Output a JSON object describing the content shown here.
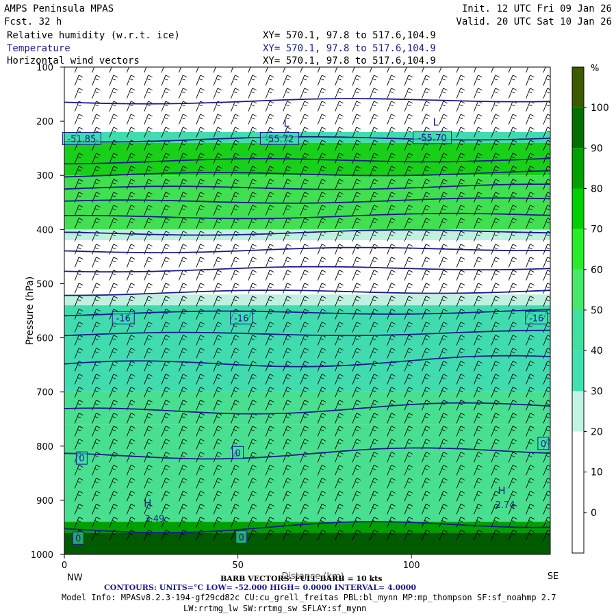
{
  "header": {
    "title": "AMPS Peninsula MPAS",
    "fcst": "Fcst.   32 h",
    "init": "Init. 12 UTC Fri 09 Jan 26",
    "valid": "Valid. 20 UTC Sat 10 Jan 26",
    "field1": "Relative humidity (w.r.t. ice)",
    "field2": "Temperature",
    "field3": "Horizontal wind vectors",
    "xy1": "XY= 570.1, 97.8 to 517.6,104.9",
    "xy2": "XY= 570.1, 97.8 to 517.6,104.9",
    "xy3": "XY= 570.1, 97.8 to 517.6,104.9"
  },
  "footer": {
    "barb": "BARB VECTORS:  FULL BARB = 10 kts",
    "contours": "CONTOURS:  UNITS=°C  LOW= -52.000         HIGH=  0.0000        INTERVAL=    4.0000",
    "model_info": "Model Info: MPASv8.2.3-194-gf29cd82c CU:cu_grell_freitas PBL:bl_mynn MP:mp_thompson SF:sf_noahmp 2.7",
    "model_info2": "LW:rrtmg_lw SW:rrtmg_sw SFLAY:sf_mynn"
  },
  "chart_data": {
    "type": "heatmap",
    "title": "Relative humidity (w.r.t. ice)",
    "ylabel": "Pressure (hPa)",
    "xlabel": "Distance (km)",
    "x_range": [
      0,
      140
    ],
    "y_range": [
      1000,
      100
    ],
    "x_ticks": [
      0,
      50,
      100
    ],
    "y_ticks": [
      100,
      200,
      300,
      400,
      500,
      600,
      700,
      800,
      900,
      1000
    ],
    "x_end_labels": {
      "left": "NW",
      "right": "SE"
    },
    "colorbar": {
      "unit": "%",
      "labels": [
        100,
        90,
        80,
        70,
        60,
        50,
        40,
        30,
        20,
        10,
        0
      ],
      "colors": [
        "#3c5a00",
        "#007000",
        "#00a000",
        "#00d000",
        "#28ee28",
        "#48e868",
        "#40e0a0",
        "#40e0b0",
        "#c0f4e4",
        "#ffffff",
        "#ffffff",
        "#ffffff"
      ]
    },
    "rh_layers": [
      {
        "p_top": 100,
        "p_bottom": 220,
        "rh": 10
      },
      {
        "p_top": 220,
        "p_bottom": 240,
        "rh": 45
      },
      {
        "p_top": 240,
        "p_bottom": 300,
        "rh": 72
      },
      {
        "p_top": 300,
        "p_bottom": 400,
        "rh": 63
      },
      {
        "p_top": 400,
        "p_bottom": 420,
        "rh": 35
      },
      {
        "p_top": 420,
        "p_bottom": 520,
        "rh": 10
      },
      {
        "p_top": 520,
        "p_bottom": 540,
        "rh": 30
      },
      {
        "p_top": 540,
        "p_bottom": 700,
        "rh": 45
      },
      {
        "p_top": 700,
        "p_bottom": 760,
        "rh": 52
      },
      {
        "p_top": 760,
        "p_bottom": 940,
        "rh": 58
      },
      {
        "p_top": 940,
        "p_bottom": 960,
        "rh": 82
      },
      {
        "p_top": 960,
        "p_bottom": 1000,
        "rh": 100
      }
    ],
    "temperature_contours": {
      "units": "°C",
      "low": -52.0,
      "high": 0.0,
      "interval": 4.0,
      "labels": [
        {
          "text": "-51.85",
          "x": 5,
          "p": 232
        },
        {
          "text": "-55.72",
          "x": 62,
          "p": 232
        },
        {
          "text": "-55.70",
          "x": 106,
          "p": 230
        },
        {
          "text": "-16",
          "x": 17,
          "p": 563
        },
        {
          "text": "-16",
          "x": 51,
          "p": 563
        },
        {
          "text": "-16",
          "x": 136,
          "p": 563
        },
        {
          "text": "0",
          "x": 5,
          "p": 822
        },
        {
          "text": "0",
          "x": 50,
          "p": 812
        },
        {
          "text": "0",
          "x": 138,
          "p": 795
        },
        {
          "text": "0",
          "x": 4,
          "p": 970
        },
        {
          "text": "0",
          "x": 51,
          "p": 968
        }
      ],
      "extrema": [
        {
          "kind": "L",
          "x": 64,
          "p": 210
        },
        {
          "kind": "L",
          "x": 107,
          "p": 208
        },
        {
          "kind": "H",
          "x": 24,
          "p": 912
        },
        {
          "kind": "H",
          "x": 126,
          "p": 889
        }
      ],
      "extrema_values": [
        {
          "text": "3.49",
          "x": 26,
          "p": 940
        },
        {
          "text": "2.74",
          "x": 127,
          "p": 914
        }
      ]
    }
  }
}
